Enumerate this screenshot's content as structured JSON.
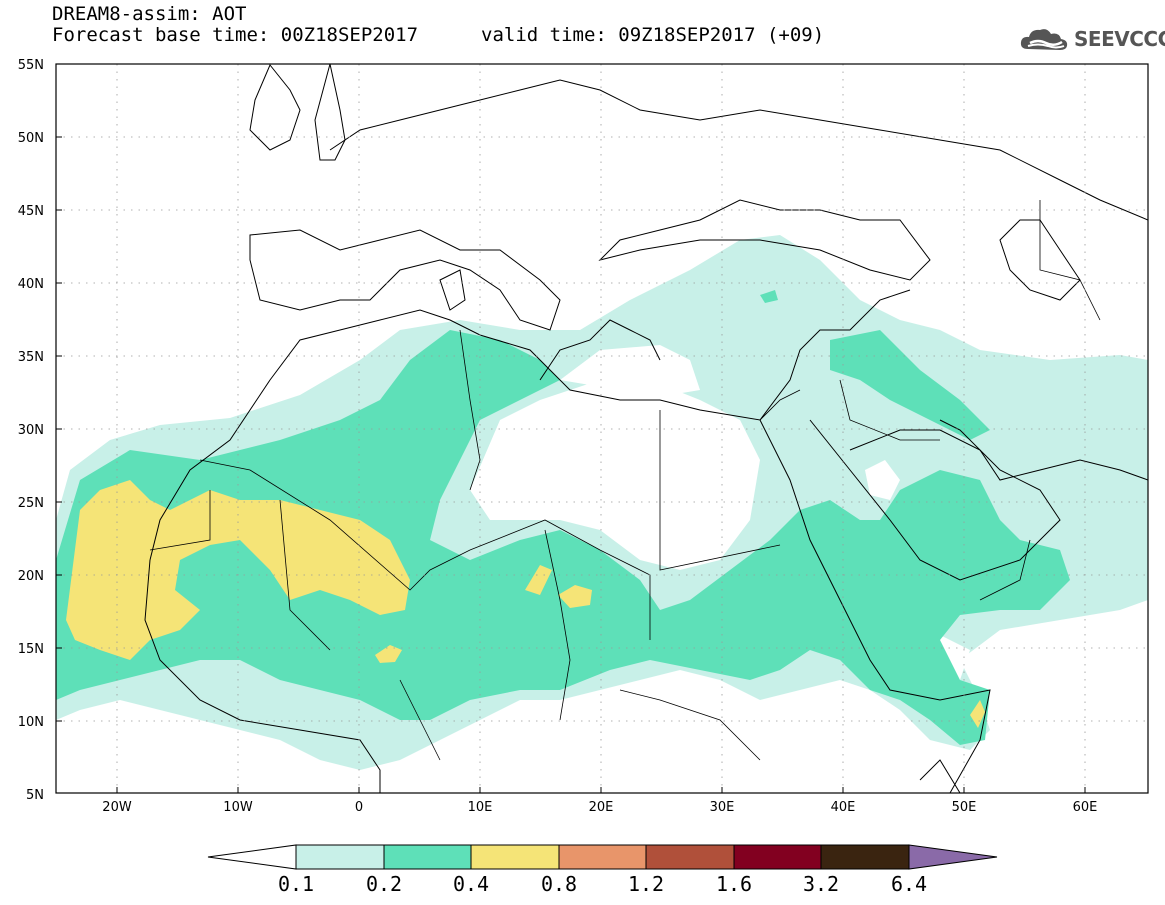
{
  "title": {
    "line1": "DREAM8-assim: AOT",
    "line2_left": "Forecast base time: 00Z18SEP2017",
    "line2_right": "valid time: 09Z18SEP2017 (+09)"
  },
  "logo": {
    "text": "SEEVCCC",
    "icon": "cloud-icon"
  },
  "map": {
    "lon_range": [
      -25,
      65
    ],
    "lat_range": [
      5,
      55
    ],
    "lon_ticks": [
      "20W",
      "10W",
      "0",
      "10E",
      "20E",
      "30E",
      "40E",
      "50E",
      "60E"
    ],
    "lat_ticks": [
      "55N",
      "50N",
      "45N",
      "40N",
      "35N",
      "30N",
      "25N",
      "20N",
      "15N",
      "10N",
      "5N"
    ]
  },
  "colorbar": {
    "levels": [
      "0.1",
      "0.2",
      "0.4",
      "0.8",
      "1.2",
      "1.6",
      "3.2",
      "6.4"
    ],
    "colors": [
      "#ffffff",
      "#c8f0e8",
      "#5ee0b8",
      "#f5e477",
      "#e8956a",
      "#b0503a",
      "#820020",
      "#3a2410",
      "#8a6aa8"
    ]
  }
}
